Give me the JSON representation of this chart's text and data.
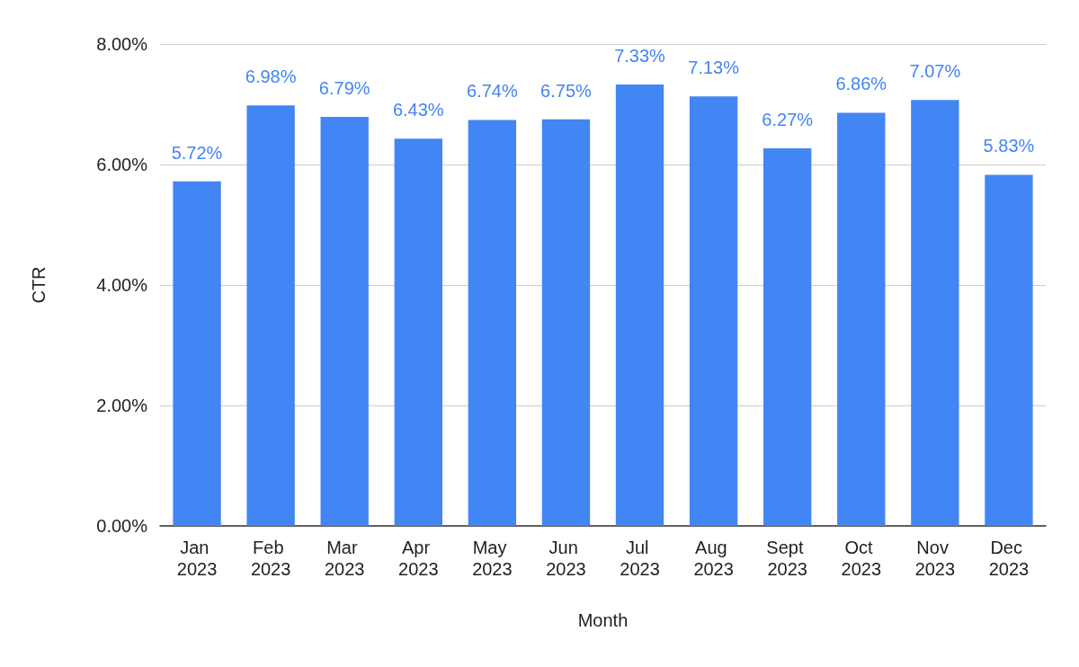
{
  "chart_data": {
    "type": "bar",
    "xlabel": "Month",
    "ylabel": "CTR",
    "categories": [
      "Jan 2023",
      "Feb 2023",
      "Mar 2023",
      "Apr 2023",
      "May 2023",
      "Jun 2023",
      "Jul 2023",
      "Aug 2023",
      "Sept 2023",
      "Oct 2023",
      "Nov 2023",
      "Dec 2023"
    ],
    "values": [
      5.72,
      6.98,
      6.79,
      6.43,
      6.74,
      6.75,
      7.33,
      7.13,
      6.27,
      6.86,
      7.07,
      5.83
    ],
    "value_labels": [
      "5.72%",
      "6.98%",
      "6.79%",
      "6.43%",
      "6.74%",
      "6.75%",
      "7.33%",
      "7.13%",
      "6.27%",
      "6.86%",
      "7.07%",
      "5.83%"
    ],
    "color": "#4285f4",
    "ylim": [
      0,
      8
    ],
    "yticks": [
      {
        "value": 0,
        "label": "0.00%"
      },
      {
        "value": 2,
        "label": "2.00%"
      },
      {
        "value": 4,
        "label": "4.00%"
      },
      {
        "value": 6,
        "label": "6.00%"
      },
      {
        "value": 8,
        "label": "8.00%"
      }
    ],
    "grid": "y"
  }
}
